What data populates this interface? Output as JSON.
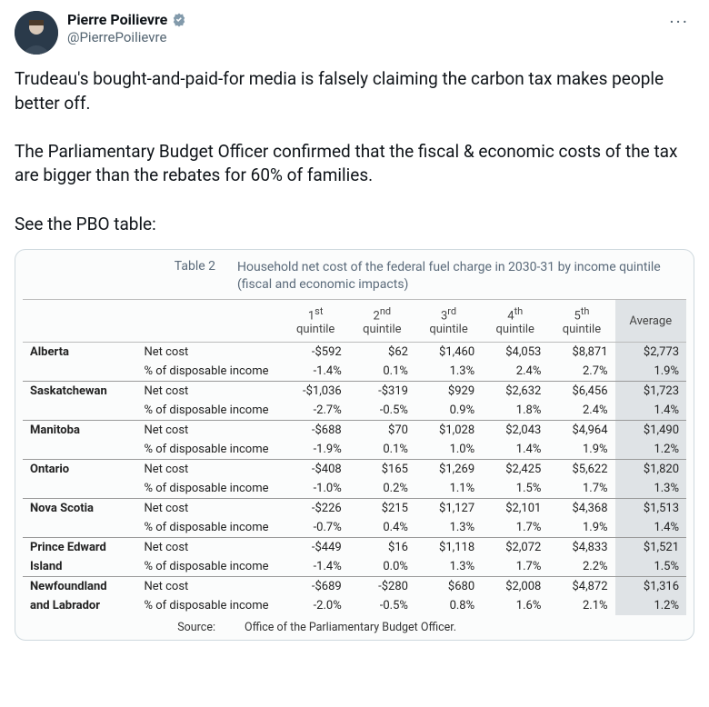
{
  "author": {
    "display_name": "Pierre Poilievre",
    "handle": "@PierrePoilievre"
  },
  "tweet_text": "Trudeau's bought-and-paid-for media is falsely claiming the carbon tax makes people better off.\n\nThe Parliamentary Budget Officer confirmed that the fiscal & economic costs of the tax are bigger than the rebates for 60% of families.\n\nSee the PBO table:",
  "table": {
    "label": "Table 2",
    "title": "Household net cost of the federal fuel charge in 2030-31 by income quintile (fiscal and economic impacts)",
    "columns": {
      "q1": {
        "ord": "1",
        "suffix": "st",
        "sub": "quintile"
      },
      "q2": {
        "ord": "2",
        "suffix": "nd",
        "sub": "quintile"
      },
      "q3": {
        "ord": "3",
        "suffix": "rd",
        "sub": "quintile"
      },
      "q4": {
        "ord": "4",
        "suffix": "th",
        "sub": "quintile"
      },
      "q5": {
        "ord": "5",
        "suffix": "th",
        "sub": "quintile"
      },
      "avg": "Average"
    },
    "metrics": {
      "net": "Net cost",
      "pct": "% of disposable income"
    },
    "provinces": [
      {
        "name": "Alberta",
        "name2": "",
        "net": [
          "-$592",
          "$62",
          "$1,460",
          "$4,053",
          "$8,871",
          "$2,773"
        ],
        "pct": [
          "-1.4%",
          "0.1%",
          "1.3%",
          "2.4%",
          "2.7%",
          "1.9%"
        ]
      },
      {
        "name": "Saskatchewan",
        "name2": "",
        "net": [
          "-$1,036",
          "-$319",
          "$929",
          "$2,632",
          "$6,456",
          "$1,723"
        ],
        "pct": [
          "-2.7%",
          "-0.5%",
          "0.9%",
          "1.8%",
          "2.4%",
          "1.4%"
        ]
      },
      {
        "name": "Manitoba",
        "name2": "",
        "net": [
          "-$688",
          "$70",
          "$1,028",
          "$2,043",
          "$4,964",
          "$1,490"
        ],
        "pct": [
          "-1.9%",
          "0.1%",
          "1.0%",
          "1.4%",
          "1.9%",
          "1.2%"
        ]
      },
      {
        "name": "Ontario",
        "name2": "",
        "net": [
          "-$408",
          "$165",
          "$1,269",
          "$2,425",
          "$5,622",
          "$1,820"
        ],
        "pct": [
          "-1.0%",
          "0.2%",
          "1.1%",
          "1.5%",
          "1.7%",
          "1.3%"
        ]
      },
      {
        "name": "Nova Scotia",
        "name2": "",
        "net": [
          "-$226",
          "$215",
          "$1,127",
          "$2,101",
          "$4,368",
          "$1,513"
        ],
        "pct": [
          "-0.7%",
          "0.4%",
          "1.3%",
          "1.7%",
          "1.9%",
          "1.4%"
        ]
      },
      {
        "name": "Prince Edward",
        "name2": "Island",
        "net": [
          "-$449",
          "$16",
          "$1,118",
          "$2,072",
          "$4,833",
          "$1,521"
        ],
        "pct": [
          "-1.4%",
          "0.0%",
          "1.3%",
          "1.7%",
          "2.2%",
          "1.5%"
        ]
      },
      {
        "name": "Newfoundland",
        "name2": "and Labrador",
        "net": [
          "-$689",
          "-$280",
          "$680",
          "$2,008",
          "$4,872",
          "$1,316"
        ],
        "pct": [
          "-2.0%",
          "-0.5%",
          "0.8%",
          "1.6%",
          "2.1%",
          "1.2%"
        ]
      }
    ],
    "source_label": "Source:",
    "source_text": "Office of the Parliamentary Budget Officer.",
    "style": {
      "avg_bg": "#dfe3e6",
      "border_color": "#999999",
      "header_text_color": "#5a6a7a",
      "font_size_body": 13,
      "font_size_header": 14
    }
  }
}
